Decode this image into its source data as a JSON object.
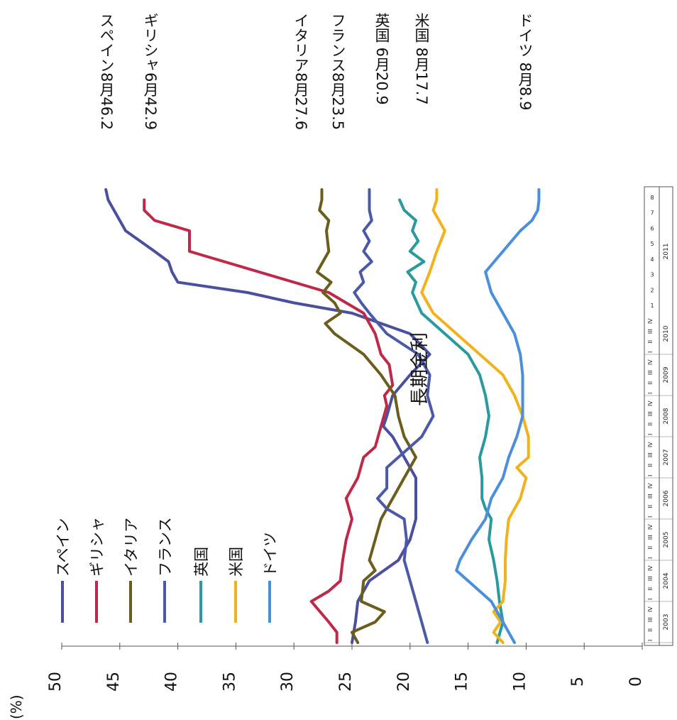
{
  "chart_data": {
    "type": "line",
    "title": "長期金利",
    "unit_label": "(%)",
    "ylim": [
      0,
      50
    ],
    "yticks": [
      0,
      5,
      10,
      15,
      20,
      25,
      30,
      35,
      40,
      45,
      50
    ],
    "years": [
      "2003",
      "2004",
      "2005",
      "2006",
      "2007",
      "2008",
      "2009",
      "2010",
      "2011"
    ],
    "quarters": [
      "I",
      "II",
      "III",
      "IV"
    ],
    "months_2011": [
      "1",
      "2",
      "3",
      "4",
      "5",
      "6",
      "7",
      "8"
    ],
    "colors": {
      "spain": "#4a4f9e",
      "greece": "#c0284a",
      "italy": "#6b5e1c",
      "france": "#4b5aa6",
      "uk": "#2a9a9e",
      "us": "#f2b21c",
      "germany": "#4a8fdc"
    },
    "series": [
      {
        "name": "スペイン",
        "key": "spain",
        "end_label": "スペイン8月46.2",
        "points": [
          [
            0,
            25
          ],
          [
            2,
            24.7
          ],
          [
            4,
            24.5
          ],
          [
            6,
            23.5
          ],
          [
            8,
            21
          ],
          [
            10,
            20
          ],
          [
            12,
            19.5
          ],
          [
            14,
            19.5
          ],
          [
            16,
            19.5
          ],
          [
            18,
            20.5
          ],
          [
            20,
            21.5
          ],
          [
            21,
            22.3
          ],
          [
            22,
            22
          ],
          [
            24,
            21.5
          ],
          [
            26,
            20
          ],
          [
            28,
            18.3
          ],
          [
            30,
            20
          ],
          [
            32,
            25
          ],
          [
            33,
            30
          ],
          [
            34,
            34
          ],
          [
            35,
            40
          ],
          [
            36,
            40.5
          ],
          [
            37,
            40.8
          ],
          [
            38,
            42
          ],
          [
            40,
            44.5
          ],
          [
            41,
            45
          ],
          [
            42,
            45.5
          ],
          [
            43,
            46
          ],
          [
            44,
            46.2
          ]
        ]
      },
      {
        "name": "ギリシャ",
        "key": "greece",
        "end_label": "ギリシャ6月42.9",
        "points": [
          [
            0,
            26.3
          ],
          [
            1,
            26.3
          ],
          [
            2,
            27
          ],
          [
            4,
            28.5
          ],
          [
            5,
            27
          ],
          [
            6,
            26
          ],
          [
            8,
            25.8
          ],
          [
            10,
            25.5
          ],
          [
            12,
            25
          ],
          [
            14,
            25.5
          ],
          [
            16,
            24.5
          ],
          [
            18,
            24
          ],
          [
            19,
            23
          ],
          [
            21,
            22.5
          ],
          [
            23,
            22
          ],
          [
            24,
            22.2
          ],
          [
            25,
            21.5
          ],
          [
            27,
            21.8
          ],
          [
            28,
            22.5
          ],
          [
            30,
            23
          ],
          [
            32,
            24
          ],
          [
            34,
            27
          ],
          [
            36,
            33
          ],
          [
            37,
            36
          ],
          [
            38,
            39
          ],
          [
            40,
            39
          ],
          [
            41,
            42
          ],
          [
            42,
            42.9
          ],
          [
            43,
            42.9
          ]
        ]
      },
      {
        "name": "イタリア",
        "key": "italy",
        "end_label": "イタリア8月27.6",
        "points": [
          [
            0,
            24.5
          ],
          [
            1,
            25
          ],
          [
            2,
            23
          ],
          [
            3,
            22.2
          ],
          [
            4,
            24.2
          ],
          [
            6,
            24
          ],
          [
            7,
            23
          ],
          [
            8,
            23.5
          ],
          [
            10,
            23
          ],
          [
            12,
            22.5
          ],
          [
            14,
            21.5
          ],
          [
            16,
            20.5
          ],
          [
            18,
            19.5
          ],
          [
            20,
            20.5
          ],
          [
            22,
            21
          ],
          [
            24,
            21.3
          ],
          [
            26,
            22.5
          ],
          [
            28,
            24
          ],
          [
            30,
            26.5
          ],
          [
            31,
            27.3
          ],
          [
            32,
            26
          ],
          [
            33,
            26.5
          ],
          [
            34,
            27.5
          ],
          [
            35,
            26.8
          ],
          [
            36,
            28
          ],
          [
            37,
            27.5
          ],
          [
            38,
            27
          ],
          [
            40,
            27.2
          ],
          [
            41,
            27
          ],
          [
            42,
            27.8
          ],
          [
            43,
            27.6
          ],
          [
            44,
            27.6
          ]
        ]
      },
      {
        "name": "フランス",
        "key": "france",
        "end_label": "フランス8月23.5",
        "points": [
          [
            0,
            18.5
          ],
          [
            2,
            19
          ],
          [
            4,
            19.5
          ],
          [
            6,
            20
          ],
          [
            8,
            20.5
          ],
          [
            10,
            20.3
          ],
          [
            12,
            20.5
          ],
          [
            13,
            22
          ],
          [
            14,
            22.8
          ],
          [
            15,
            22
          ],
          [
            17,
            22
          ],
          [
            18,
            21
          ],
          [
            19,
            20
          ],
          [
            20,
            19
          ],
          [
            22,
            18
          ],
          [
            24,
            18.5
          ],
          [
            26,
            18.3
          ],
          [
            28,
            19.3
          ],
          [
            30,
            22
          ],
          [
            32,
            23.5
          ],
          [
            33,
            24.2
          ],
          [
            34,
            24.8
          ],
          [
            35,
            24
          ],
          [
            36,
            24.3
          ],
          [
            37,
            23.3
          ],
          [
            38,
            24
          ],
          [
            39,
            23.5
          ],
          [
            40,
            24
          ],
          [
            41,
            23.3
          ],
          [
            42,
            23.5
          ],
          [
            43,
            23.5
          ],
          [
            44,
            23.5
          ]
        ]
      },
      {
        "name": "英国",
        "key": "uk",
        "end_label": "英国 6月20.9",
        "points": [
          [
            0,
            12.5
          ],
          [
            2,
            12
          ],
          [
            4,
            12.3
          ],
          [
            6,
            12.5
          ],
          [
            8,
            12.8
          ],
          [
            10,
            13.2
          ],
          [
            12,
            13
          ],
          [
            13,
            13.5
          ],
          [
            14,
            13.8
          ],
          [
            16,
            13.8
          ],
          [
            18,
            14
          ],
          [
            20,
            13.5
          ],
          [
            22,
            13.2
          ],
          [
            24,
            13.5
          ],
          [
            26,
            14
          ],
          [
            28,
            15
          ],
          [
            30,
            17
          ],
          [
            32,
            19
          ],
          [
            34,
            19.8
          ],
          [
            35,
            19.5
          ],
          [
            36,
            20.2
          ],
          [
            37,
            18.8
          ],
          [
            38,
            20
          ],
          [
            39,
            19.3
          ],
          [
            40,
            19.8
          ],
          [
            41,
            19.5
          ],
          [
            42,
            20.5
          ],
          [
            43,
            20.9
          ]
        ]
      },
      {
        "name": "米国",
        "key": "us",
        "end_label": "米国 8月17.7",
        "points": [
          [
            0,
            12
          ],
          [
            1,
            12.8
          ],
          [
            2,
            12.2
          ],
          [
            3,
            12.8
          ],
          [
            4,
            12
          ],
          [
            6,
            11.8
          ],
          [
            8,
            11.8
          ],
          [
            10,
            11.7
          ],
          [
            12,
            11.5
          ],
          [
            14,
            10.5
          ],
          [
            16,
            10
          ],
          [
            17,
            10.8
          ],
          [
            18,
            9.8
          ],
          [
            20,
            9.8
          ],
          [
            22,
            10.3
          ],
          [
            24,
            11
          ],
          [
            26,
            12
          ],
          [
            28,
            14
          ],
          [
            30,
            16
          ],
          [
            32,
            18
          ],
          [
            34,
            19
          ],
          [
            36,
            18.3
          ],
          [
            38,
            17.7
          ],
          [
            40,
            17
          ],
          [
            41,
            17.5
          ],
          [
            42,
            18
          ],
          [
            43,
            17.7
          ],
          [
            44,
            17.7
          ]
        ]
      },
      {
        "name": "ドイツ",
        "key": "germany",
        "end_label": "ドイツ 8月8.9",
        "points": [
          [
            0,
            11
          ],
          [
            2,
            12
          ],
          [
            4,
            13
          ],
          [
            6,
            15
          ],
          [
            7,
            16
          ],
          [
            8,
            15.7
          ],
          [
            10,
            14.7
          ],
          [
            12,
            13.5
          ],
          [
            14,
            13
          ],
          [
            16,
            12
          ],
          [
            18,
            11.5
          ],
          [
            20,
            10.8
          ],
          [
            22,
            10.3
          ],
          [
            24,
            10.3
          ],
          [
            26,
            10.3
          ],
          [
            28,
            10.5
          ],
          [
            30,
            11
          ],
          [
            32,
            12
          ],
          [
            34,
            13
          ],
          [
            36,
            13.5
          ],
          [
            38,
            12
          ],
          [
            40,
            10.5
          ],
          [
            41,
            9.5
          ],
          [
            42,
            9
          ],
          [
            43,
            8.9
          ],
          [
            44,
            8.9
          ]
        ]
      }
    ]
  }
}
